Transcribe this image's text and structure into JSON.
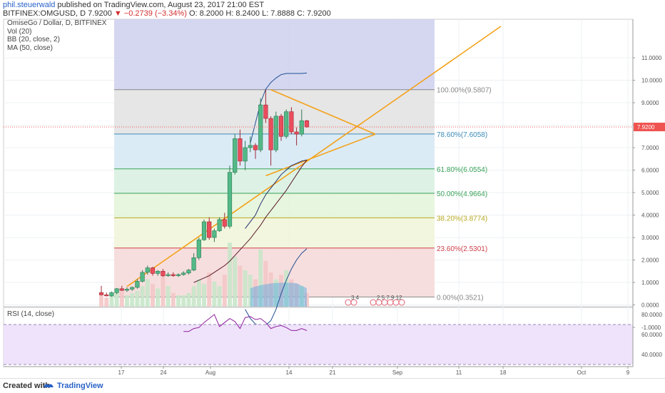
{
  "header": {
    "author": "phil.steuerwald",
    "published_text": " published on TradingView.com, August 23, 2017 21:00 EST",
    "symbol_line_prefix": "BITFINEX:OMGUSD, D  7.9200 ",
    "down_arrow": "▼",
    "change": " −0.2739 (−3.34%) ",
    "ohlc": "O: 8.2000  H: 8.2400  L: 7.8888  C: 7.9200"
  },
  "indicators": {
    "title": "OmiseGo / Dollar, D, BITFINEX",
    "vol": "Vol (20)",
    "bb": "BB (20, close, 2)",
    "ma": "MA (50, close)",
    "rsi": "RSI (14, close)"
  },
  "footer": {
    "created_with": "Created with",
    "brand": "TradingView"
  },
  "colors": {
    "up": "#53b987",
    "down": "#eb4d5c",
    "trend": "#f4a11a",
    "last_price": "#ef5350",
    "bb": "#1f4f91"
  },
  "chart_data": {
    "type": "candlestick",
    "y_ticks": [
      "11.0000",
      "10.0000",
      "9.0000",
      "8.0000",
      "7.0000",
      "6.0000",
      "5.0000",
      "4.0000",
      "3.0000",
      "2.0000",
      "1.0000",
      "0.0000",
      "-1.0000"
    ],
    "rsi_ticks": [
      "80.0000",
      "60.0000",
      "40.0000"
    ],
    "x_ticks": [
      "17",
      "24",
      "Aug",
      "14",
      "21",
      "Sep",
      "11",
      "18",
      "Oct",
      "9"
    ],
    "last_price_label": "7.9200",
    "last_price": 7.92,
    "fib_levels": [
      {
        "label": "100.00%(9.5807)",
        "value": 9.5807,
        "color": "#888888",
        "fill": "#e2e2e2"
      },
      {
        "label": "78.60%(7.6058)",
        "value": 7.6058,
        "color": "#3d8bb8",
        "fill": "#d5e8f4"
      },
      {
        "label": "61.80%(6.0554)",
        "value": 6.0554,
        "color": "#3aa35a",
        "fill": "#d7f0df"
      },
      {
        "label": "50.00%(4.9664)",
        "value": 4.9664,
        "color": "#3aa35a",
        "fill": "#e3f4d8"
      },
      {
        "label": "38.20%(3.8774)",
        "value": 3.8774,
        "color": "#b8a820",
        "fill": "#f0f4d8"
      },
      {
        "label": "23.60%(2.5301)",
        "value": 2.5301,
        "color": "#d0404a",
        "fill": "#f6d8d8"
      },
      {
        "label": "0.00%(0.3521)",
        "value": 0.3521,
        "color": "#888888",
        "fill": "none"
      }
    ],
    "candles": [
      {
        "o": 0.55,
        "h": 0.85,
        "l": 0.42,
        "c": 0.45
      },
      {
        "o": 0.45,
        "h": 0.55,
        "l": 0.38,
        "c": 0.4
      },
      {
        "o": 0.4,
        "h": 0.6,
        "l": 0.36,
        "c": 0.55
      },
      {
        "o": 0.55,
        "h": 0.75,
        "l": 0.48,
        "c": 0.72
      },
      {
        "o": 0.72,
        "h": 0.85,
        "l": 0.62,
        "c": 0.65
      },
      {
        "o": 0.65,
        "h": 0.78,
        "l": 0.58,
        "c": 0.7
      },
      {
        "o": 0.7,
        "h": 0.82,
        "l": 0.62,
        "c": 0.78
      },
      {
        "o": 0.78,
        "h": 1.15,
        "l": 0.72,
        "c": 1.05
      },
      {
        "o": 1.05,
        "h": 1.55,
        "l": 1.0,
        "c": 1.45
      },
      {
        "o": 1.45,
        "h": 1.75,
        "l": 1.35,
        "c": 1.65
      },
      {
        "o": 1.65,
        "h": 1.7,
        "l": 1.3,
        "c": 1.4
      },
      {
        "o": 1.4,
        "h": 1.55,
        "l": 1.3,
        "c": 1.5
      },
      {
        "o": 1.5,
        "h": 1.6,
        "l": 1.25,
        "c": 1.3
      },
      {
        "o": 1.3,
        "h": 1.45,
        "l": 1.25,
        "c": 1.35
      },
      {
        "o": 1.35,
        "h": 1.45,
        "l": 1.25,
        "c": 1.3
      },
      {
        "o": 1.3,
        "h": 1.4,
        "l": 1.25,
        "c": 1.35
      },
      {
        "o": 1.35,
        "h": 1.5,
        "l": 1.3,
        "c": 1.42
      },
      {
        "o": 1.42,
        "h": 1.6,
        "l": 1.35,
        "c": 1.55
      },
      {
        "o": 1.55,
        "h": 2.3,
        "l": 1.5,
        "c": 2.1
      },
      {
        "o": 2.1,
        "h": 3.0,
        "l": 2.0,
        "c": 2.9
      },
      {
        "o": 2.9,
        "h": 3.8,
        "l": 2.85,
        "c": 3.7
      },
      {
        "o": 3.7,
        "h": 3.9,
        "l": 2.9,
        "c": 3.0
      },
      {
        "o": 3.0,
        "h": 3.4,
        "l": 2.8,
        "c": 3.3
      },
      {
        "o": 3.3,
        "h": 3.9,
        "l": 3.25,
        "c": 3.8
      },
      {
        "o": 3.8,
        "h": 4.1,
        "l": 3.4,
        "c": 3.5
      },
      {
        "o": 3.5,
        "h": 6.2,
        "l": 3.4,
        "c": 5.9
      },
      {
        "o": 5.9,
        "h": 7.6,
        "l": 5.8,
        "c": 7.4
      },
      {
        "o": 7.4,
        "h": 7.8,
        "l": 6.2,
        "c": 6.4
      },
      {
        "o": 6.4,
        "h": 7.3,
        "l": 6.0,
        "c": 7.0
      },
      {
        "o": 7.0,
        "h": 7.5,
        "l": 6.8,
        "c": 7.1
      },
      {
        "o": 7.1,
        "h": 7.2,
        "l": 6.5,
        "c": 6.9
      },
      {
        "o": 6.9,
        "h": 9.2,
        "l": 6.8,
        "c": 8.9
      },
      {
        "o": 8.9,
        "h": 9.58,
        "l": 8.1,
        "c": 8.3
      },
      {
        "o": 8.3,
        "h": 8.4,
        "l": 6.2,
        "c": 6.9
      },
      {
        "o": 6.9,
        "h": 8.6,
        "l": 6.8,
        "c": 8.4
      },
      {
        "o": 8.4,
        "h": 8.5,
        "l": 7.3,
        "c": 7.5
      },
      {
        "o": 7.5,
        "h": 8.7,
        "l": 7.4,
        "c": 8.6
      },
      {
        "o": 8.6,
        "h": 8.8,
        "l": 7.6,
        "c": 7.7
      },
      {
        "o": 7.7,
        "h": 7.9,
        "l": 7.1,
        "c": 7.6
      },
      {
        "o": 7.6,
        "h": 8.7,
        "l": 7.5,
        "c": 8.2
      },
      {
        "o": 8.2,
        "h": 8.24,
        "l": 7.89,
        "c": 7.92
      }
    ],
    "volume": [
      6,
      4,
      5,
      7,
      8,
      5,
      6,
      7,
      9,
      12,
      10,
      8,
      14,
      9,
      6,
      5,
      5,
      6,
      9,
      12,
      10,
      15,
      11,
      9,
      14,
      28,
      22,
      18,
      16,
      14,
      12,
      25,
      20,
      15,
      12,
      14,
      16,
      12,
      10,
      9,
      6
    ],
    "bb_upper": [
      null,
      null,
      null,
      null,
      null,
      null,
      null,
      null,
      null,
      null,
      null,
      null,
      null,
      null,
      null,
      null,
      null,
      null,
      null,
      null,
      null,
      null,
      null,
      null,
      null,
      null,
      null,
      null,
      null,
      7.2,
      8.1,
      9.0,
      9.6,
      9.9,
      10.1,
      10.25,
      10.3,
      10.3,
      10.3,
      10.3,
      10.32
    ],
    "bb_lower": [
      null,
      null,
      null,
      null,
      null,
      null,
      null,
      null,
      null,
      null,
      null,
      null,
      null,
      null,
      null,
      null,
      null,
      null,
      null,
      null,
      null,
      null,
      null,
      null,
      null,
      null,
      null,
      null,
      -0.2,
      -0.6,
      -0.85,
      -0.95,
      -0.9,
      -0.7,
      -0.2,
      0.5,
      1.1,
      1.6,
      2.0,
      2.3,
      2.5
    ],
    "bb_basis": [
      null,
      null,
      null,
      null,
      null,
      null,
      null,
      null,
      null,
      null,
      null,
      null,
      null,
      null,
      null,
      null,
      null,
      null,
      null,
      null,
      null,
      null,
      null,
      null,
      null,
      null,
      null,
      null,
      3.4,
      3.7,
      4.0,
      4.5,
      4.9,
      5.2,
      5.5,
      5.8,
      6.0,
      6.2,
      6.3,
      6.4,
      6.45
    ],
    "ma50": [
      null,
      null,
      null,
      null,
      null,
      null,
      null,
      null,
      null,
      null,
      null,
      null,
      null,
      null,
      null,
      null,
      null,
      null,
      1.0,
      1.1,
      1.2,
      1.3,
      1.45,
      1.6,
      1.75,
      1.95,
      2.2,
      2.45,
      2.7,
      2.95,
      3.25,
      3.55,
      3.9,
      4.2,
      4.5,
      4.8,
      5.1,
      5.45,
      5.8,
      6.15,
      6.45
    ],
    "rsi": [
      null,
      null,
      null,
      null,
      null,
      null,
      null,
      null,
      null,
      null,
      null,
      null,
      null,
      null,
      null,
      null,
      63,
      63,
      66,
      67,
      72,
      76,
      80,
      68,
      72,
      76,
      73,
      66,
      77,
      78,
      75,
      76,
      72,
      66,
      68,
      69,
      67,
      64,
      64,
      66,
      64
    ]
  }
}
